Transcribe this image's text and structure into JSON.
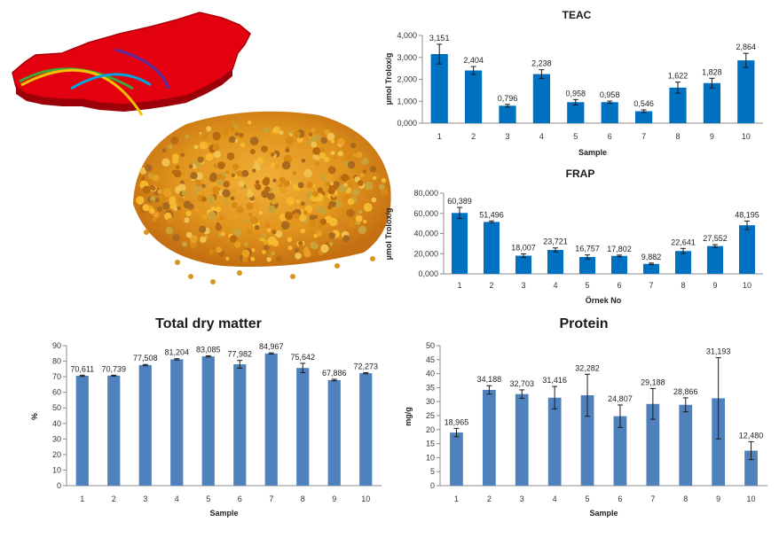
{
  "colors": {
    "teac_bar": "#0070c0",
    "frap_bar": "#0070c0",
    "dry_bar": "#4f81bd",
    "protein_bar": "#4f81bd",
    "map_red": "#e3000f",
    "pollen_orange": "#e89a1c"
  },
  "illustration": {
    "items": [
      "turkey-map-icon",
      "bee-pollen-pile-icon"
    ]
  },
  "chart_data": [
    {
      "id": "teac",
      "type": "bar",
      "title": "TEAC",
      "xlabel": "Sample",
      "ylabel": "µmol Trolox/g",
      "categories": [
        "1",
        "2",
        "3",
        "4",
        "5",
        "6",
        "7",
        "8",
        "9",
        "10"
      ],
      "values": [
        3.151,
        2.404,
        0.796,
        2.238,
        0.958,
        0.958,
        0.546,
        1.622,
        1.828,
        2.864
      ],
      "value_labels": [
        "3,151",
        "2,404",
        "0,796",
        "2,238",
        "0,958",
        "0,958",
        "0,546",
        "1,622",
        "1,828",
        "2,864"
      ],
      "errors": [
        0.45,
        0.18,
        0.06,
        0.2,
        0.12,
        0.05,
        0.06,
        0.25,
        0.22,
        0.32
      ],
      "ylim": [
        0,
        4
      ],
      "yticks": [
        0,
        1,
        2,
        3,
        4
      ],
      "ytick_labels": [
        "0,000",
        "1,000",
        "2,000",
        "3,000",
        "4,000"
      ],
      "grid": false,
      "legend": "none"
    },
    {
      "id": "frap",
      "type": "bar",
      "title": "FRAP",
      "xlabel": "Örnek No",
      "ylabel": "µmol Trolox/g",
      "categories": [
        "1",
        "2",
        "3",
        "4",
        "5",
        "6",
        "7",
        "8",
        "9",
        "10"
      ],
      "values": [
        60.389,
        51.496,
        18.007,
        23.721,
        16.757,
        17.802,
        9.882,
        22.641,
        27.552,
        48.195
      ],
      "value_labels": [
        "60,389",
        "51,496",
        "18,007",
        "23,721",
        "16,757",
        "17,802",
        "9,882",
        "22,641",
        "27,552",
        "48,195"
      ],
      "errors": [
        5.5,
        1.0,
        1.8,
        2.0,
        2.0,
        0.8,
        0.8,
        2.6,
        1.4,
        4.2
      ],
      "ylim": [
        0,
        80
      ],
      "yticks": [
        0,
        20,
        40,
        60,
        80
      ],
      "ytick_labels": [
        "0,000",
        "20,000",
        "40,000",
        "60,000",
        "80,000"
      ],
      "grid": false,
      "legend": "none"
    },
    {
      "id": "dry",
      "type": "bar",
      "title": "Total dry matter",
      "xlabel": "Sample",
      "ylabel": "%",
      "categories": [
        "1",
        "2",
        "3",
        "4",
        "5",
        "6",
        "7",
        "8",
        "9",
        "10"
      ],
      "values": [
        70.611,
        70.739,
        77.508,
        81.204,
        83.085,
        77.982,
        84.967,
        75.642,
        67.886,
        72.273
      ],
      "value_labels": [
        "70,611",
        "70,739",
        "77,508",
        "81,204",
        "83,085",
        "77,982",
        "84,967",
        "75,642",
        "67,886",
        "72,273"
      ],
      "errors": [
        0.4,
        0.3,
        0.4,
        0.4,
        0.4,
        2.5,
        0.4,
        3.0,
        0.5,
        0.4
      ],
      "ylim": [
        0,
        90
      ],
      "yticks": [
        0,
        10,
        20,
        30,
        40,
        50,
        60,
        70,
        80,
        90
      ],
      "ytick_labels": [
        "0",
        "10",
        "20",
        "30",
        "40",
        "50",
        "60",
        "70",
        "80",
        "90"
      ],
      "grid": false,
      "legend": "none"
    },
    {
      "id": "protein",
      "type": "bar",
      "title": "Protein",
      "xlabel": "Sample",
      "ylabel": "mg/g",
      "categories": [
        "1",
        "2",
        "3",
        "4",
        "5",
        "6",
        "7",
        "8",
        "9",
        "10"
      ],
      "values": [
        18.965,
        34.188,
        32.703,
        31.416,
        32.282,
        24.807,
        29.188,
        28.866,
        31.193,
        12.48
      ],
      "value_labels": [
        "18,965",
        "34,188",
        "32,703",
        "31,416",
        "32,282",
        "24,807",
        "29,188",
        "28,866",
        "31,193",
        "12,480"
      ],
      "errors": [
        1.5,
        1.5,
        1.5,
        4.0,
        7.5,
        4.0,
        5.5,
        2.5,
        14.5,
        3.2
      ],
      "ylim": [
        0,
        50
      ],
      "yticks": [
        0,
        5,
        10,
        15,
        20,
        25,
        30,
        35,
        40,
        45,
        50
      ],
      "ytick_labels": [
        "0",
        "5",
        "10",
        "15",
        "20",
        "25",
        "30",
        "35",
        "40",
        "45",
        "50"
      ],
      "grid": false,
      "legend": "none"
    }
  ]
}
